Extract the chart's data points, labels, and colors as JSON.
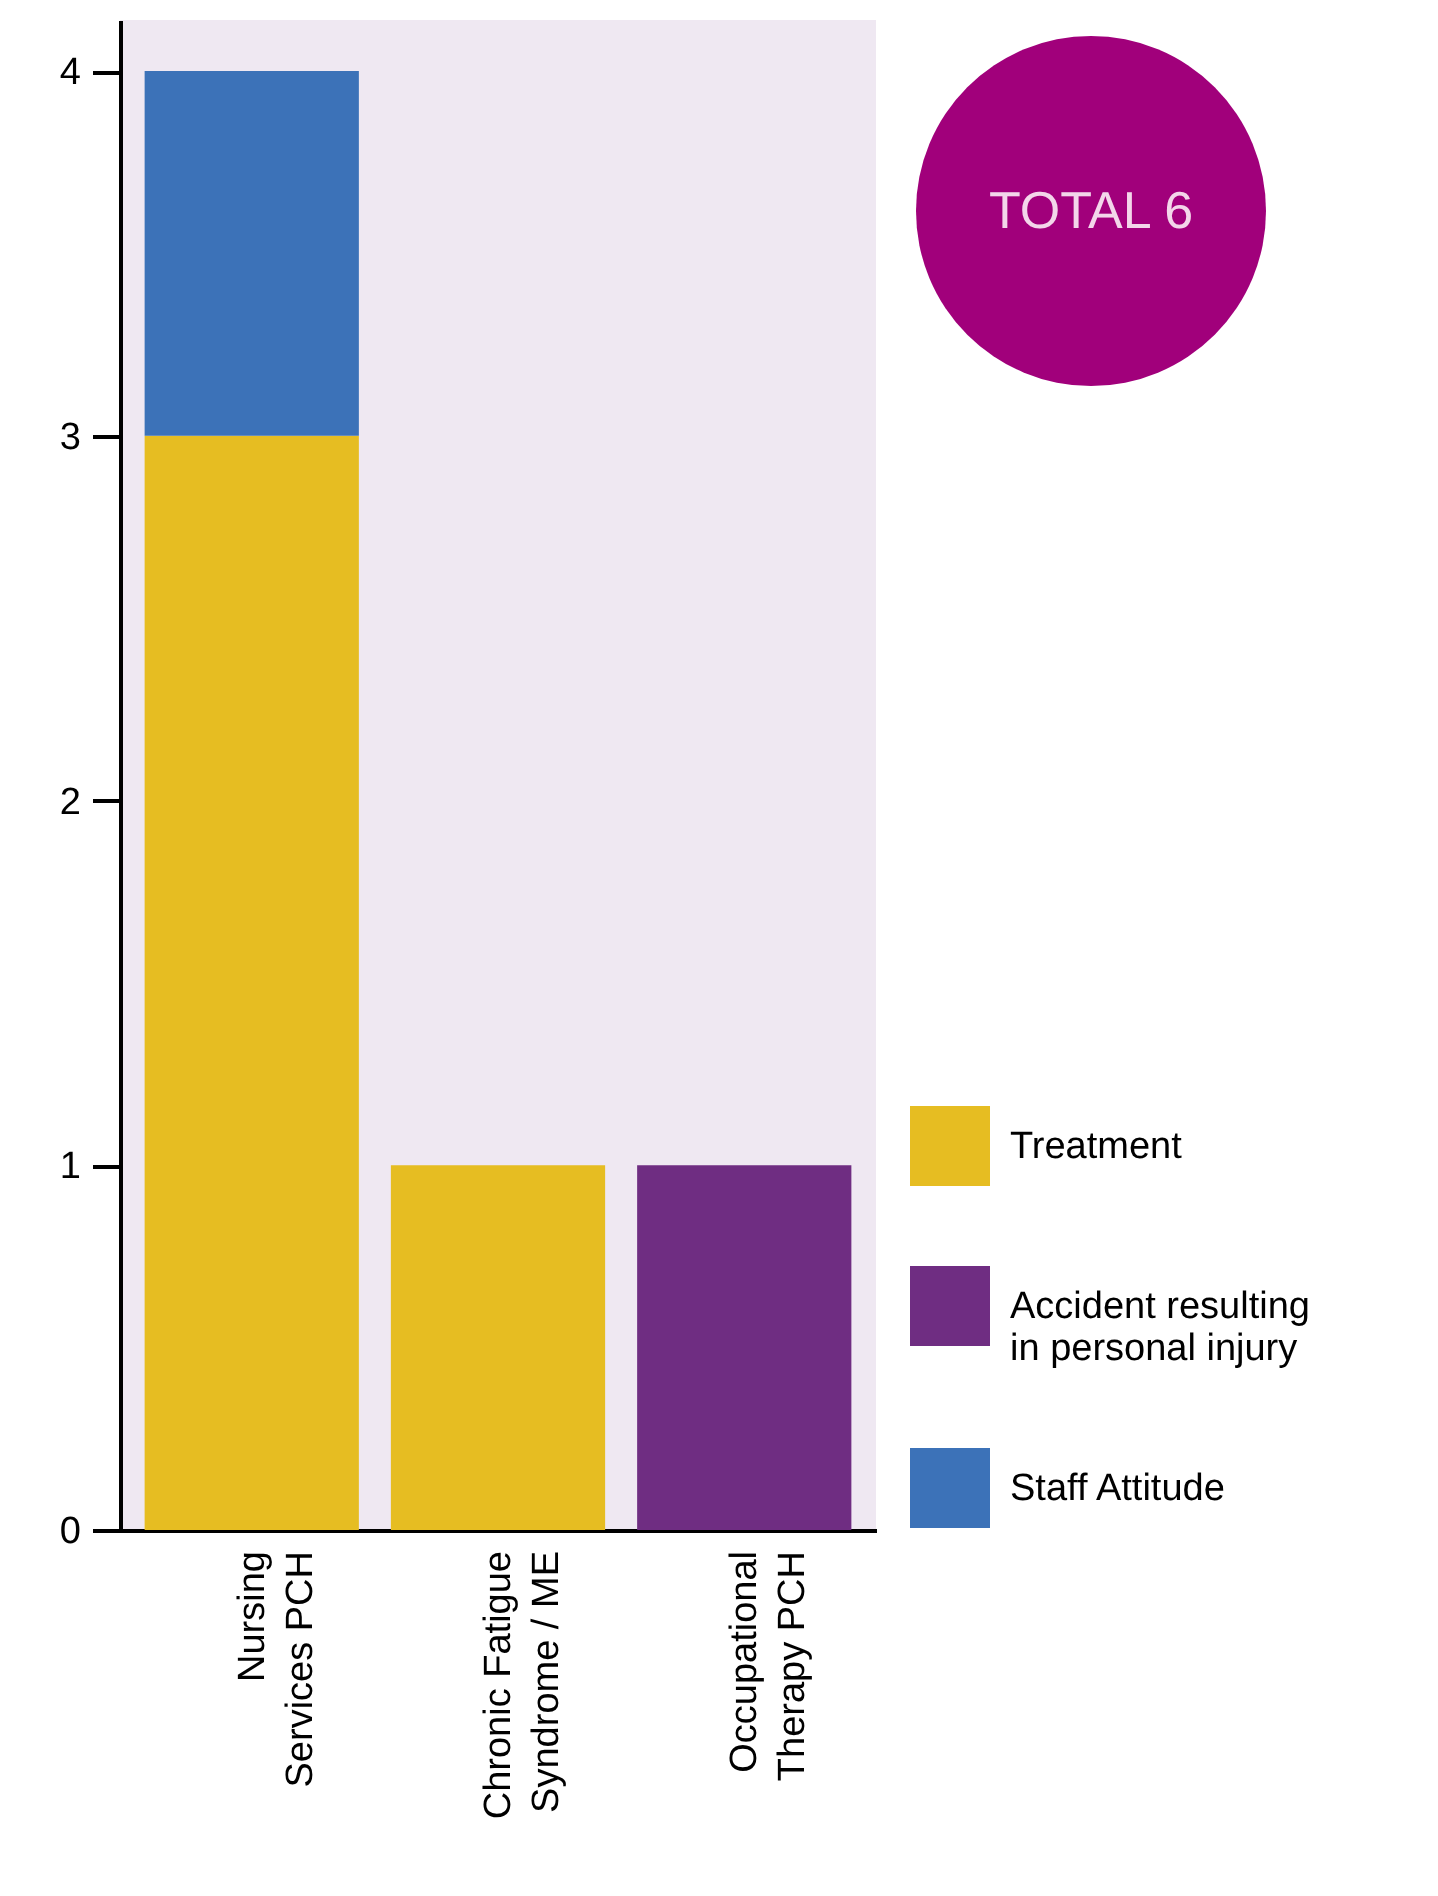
{
  "chart_data": {
    "type": "bar",
    "stacked": true,
    "categories": [
      "Nursing Services PCH",
      "Chronic Fatigue Syndrome / ME",
      "Occupational Therapy PCH"
    ],
    "series": [
      {
        "name": "Treatment",
        "color": "#e6bd22",
        "values": [
          3,
          1,
          null
        ]
      },
      {
        "name": "Accident resulting in personal injury",
        "color": "#6f2d82",
        "values": [
          null,
          null,
          1
        ]
      },
      {
        "name": "Staff Attitude",
        "color": "#3c72b8",
        "values": [
          1,
          null,
          null
        ]
      }
    ],
    "ylim": [
      0,
      4.14
    ],
    "yticks": [
      0,
      1,
      2,
      3,
      4
    ],
    "grid": false,
    "legend": "bottom right",
    "annotations": [
      "TOTAL 6"
    ]
  }
}
